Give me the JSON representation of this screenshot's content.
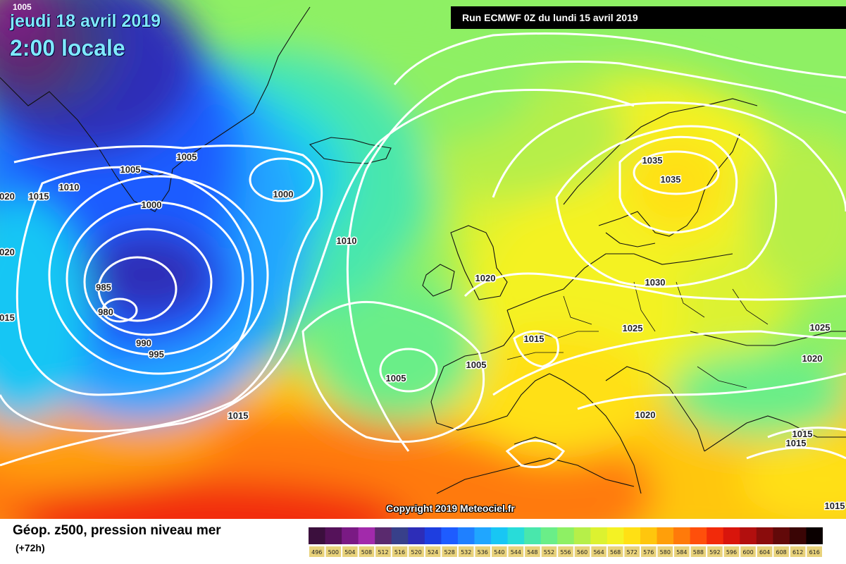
{
  "header": {
    "date": "jeudi 18 avril 2019",
    "time": "2:00 locale",
    "corner_label": "1005",
    "run": "Run ECMWF 0Z du lundi 15 avril 2019"
  },
  "copyright": "Copyright 2019 Meteociel.fr",
  "legend": {
    "title": "Géop. z500, pression niveau mer",
    "subtitle": "(+72h)",
    "scale_values": [
      "496",
      "500",
      "504",
      "508",
      "512",
      "516",
      "520",
      "524",
      "528",
      "532",
      "536",
      "540",
      "544",
      "548",
      "552",
      "556",
      "560",
      "564",
      "568",
      "572",
      "576",
      "580",
      "584",
      "588",
      "592",
      "596",
      "600",
      "604",
      "608",
      "612",
      "616"
    ],
    "scale_colors": [
      "#3b0f3d",
      "#55125a",
      "#7a1a84",
      "#a22aab",
      "#5a2a6e",
      "#38408a",
      "#2d2db8",
      "#1e3ee0",
      "#1e5cff",
      "#1f80ff",
      "#20a6ff",
      "#18c6f4",
      "#28dcd9",
      "#49e7ac",
      "#6aee88",
      "#8ef064",
      "#b6ef49",
      "#dcf230",
      "#f4f224",
      "#ffe014",
      "#ffc60d",
      "#ff9f0a",
      "#ff7a0a",
      "#ff4f0b",
      "#f22a0a",
      "#d9150c",
      "#b20f0e",
      "#8a0c0c",
      "#620909",
      "#3a0505",
      "#0a0000"
    ]
  },
  "isobar_labels": [
    {
      "text": "1005"
    },
    {
      "text": "1005"
    },
    {
      "text": "1010"
    },
    {
      "text": "1015"
    },
    {
      "text": "1000"
    },
    {
      "text": "1000"
    },
    {
      "text": "020"
    },
    {
      "text": "020"
    },
    {
      "text": "015"
    },
    {
      "text": "985"
    },
    {
      "text": "980"
    },
    {
      "text": "990"
    },
    {
      "text": "995"
    },
    {
      "text": "1010"
    },
    {
      "text": "1020"
    },
    {
      "text": "1035"
    },
    {
      "text": "1035"
    },
    {
      "text": "1030"
    },
    {
      "text": "1025"
    },
    {
      "text": "1025"
    },
    {
      "text": "1015"
    },
    {
      "text": "1005"
    },
    {
      "text": "1005"
    },
    {
      "text": "1020"
    },
    {
      "text": "1015"
    },
    {
      "text": "1020"
    },
    {
      "text": "1015"
    },
    {
      "text": "1015"
    },
    {
      "text": "1015"
    }
  ]
}
